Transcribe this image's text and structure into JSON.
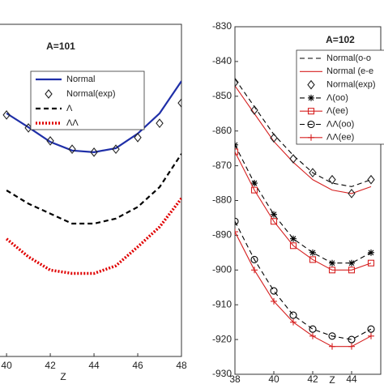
{
  "chart_data": [
    {
      "type": "line",
      "title": "A=101",
      "xlabel": "Z",
      "x": [
        40,
        41,
        42,
        43,
        44,
        45,
        46,
        47,
        48
      ],
      "xlim": [
        39.7,
        48
      ],
      "xticks": [
        40,
        42,
        44,
        46,
        48
      ],
      "ylim": [
        -930,
        -830
      ],
      "grid": false,
      "series": [
        {
          "name": "Normal",
          "color": "#1f2fa8",
          "dash": "solid",
          "marker": "none",
          "values": [
            -856.8,
            -861,
            -865.4,
            -868,
            -868.5,
            -867.3,
            -862.9,
            -856.8,
            -847.1
          ]
        },
        {
          "name": "Normal(exp)",
          "color": "#222222",
          "dash": "none",
          "marker": "diamond",
          "values": [
            -857.3,
            -861.2,
            -865.1,
            -867.6,
            -868.5,
            -867.6,
            -864.1,
            -859.8,
            -853.7
          ]
        },
        {
          "name": "Λ",
          "color": "#000000",
          "dash": "dashed",
          "marker": "none",
          "values": [
            -880,
            -884,
            -887,
            -890,
            -890,
            -888.5,
            -885,
            -879,
            -869
          ]
        },
        {
          "name": "ΛΛ",
          "color": "#e00000",
          "dash": "dotted",
          "marker": "none",
          "values": [
            -894.6,
            -900,
            -904,
            -905,
            -905,
            -902.7,
            -897,
            -891,
            -882.4
          ]
        }
      ]
    },
    {
      "type": "line",
      "title": "A=102",
      "xlabel": "Z",
      "x": [
        38,
        39,
        40,
        41,
        42,
        43,
        44,
        45
      ],
      "xlim": [
        38,
        45.5
      ],
      "xticks": [
        38,
        40,
        42,
        44
      ],
      "ylim": [
        -930,
        -830
      ],
      "yticks": [
        -830,
        -840,
        -850,
        -860,
        -870,
        -880,
        -890,
        -900,
        -910,
        -920,
        -930
      ],
      "grid": false,
      "series": [
        {
          "name": "Normal(o-o",
          "color": "#000000",
          "dash": "dashed",
          "marker": "none",
          "values": [
            -845,
            -853,
            -861,
            -867,
            -872,
            -875,
            -876,
            -874
          ]
        },
        {
          "name": "Normal (e-e",
          "color": "#d62020",
          "dash": "solid",
          "marker": "none",
          "values": [
            -847,
            -855,
            -863,
            -869,
            -874,
            -877,
            -878,
            -876
          ]
        },
        {
          "name": "Normal(exp)",
          "color": "#222222",
          "dash": "none",
          "marker": "diamond",
          "values": [
            -846,
            -854,
            -862,
            -868,
            -872,
            -874,
            -878,
            -874
          ]
        },
        {
          "name": "Λ(oo)",
          "color": "#000000",
          "dash": "dashed",
          "marker": "star",
          "values": [
            -864,
            -875,
            -884,
            -891,
            -895,
            -898,
            -898,
            -895
          ]
        },
        {
          "name": "Λ(ee)",
          "color": "#d62020",
          "dash": "solid",
          "marker": "square",
          "values": [
            -866,
            -877,
            -886,
            -893,
            -897,
            -900,
            -900,
            -898
          ]
        },
        {
          "name": "ΛΛ(oo)",
          "color": "#000000",
          "dash": "dashed",
          "marker": "circle",
          "values": [
            -886,
            -897,
            -906,
            -913,
            -917,
            -919,
            -920,
            -917
          ]
        },
        {
          "name": "ΛΛ(ee)",
          "color": "#d62020",
          "dash": "solid",
          "marker": "plus",
          "values": [
            -889,
            -900,
            -909,
            -915,
            -919,
            -922,
            -922,
            -919
          ]
        }
      ]
    }
  ]
}
